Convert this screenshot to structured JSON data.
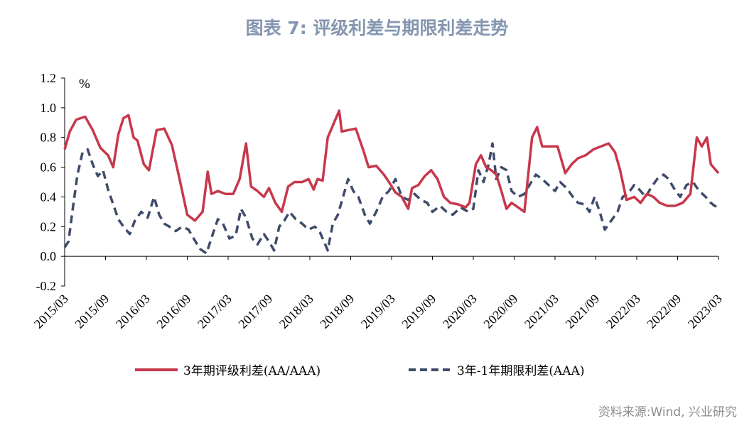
{
  "title": "图表 7:  评级利差与期限利差走势",
  "source": "资料来源:Wind, 兴业研究",
  "colors": {
    "series1": "#C8374B",
    "series2": "#3E4C6B",
    "title": "#8496B0"
  },
  "chart_data": {
    "type": "line",
    "unit_label": "%",
    "ylim": [
      -0.2,
      1.2
    ],
    "yticks": [
      "1.2",
      "1.0",
      "0.8",
      "0.6",
      "0.4",
      "0.2",
      "0.0",
      "-0.2"
    ],
    "xticks": [
      "2015/03",
      "2015/09",
      "2016/03",
      "2016/09",
      "2017/03",
      "2017/09",
      "2018/03",
      "2018/09",
      "2019/03",
      "2019/09",
      "2020/03",
      "2020/09",
      "2021/03",
      "2021/09",
      "2022/03",
      "2022/09",
      "2023/03"
    ],
    "grid": false,
    "legend_position": "bottom",
    "series": [
      {
        "name": "3年期评级利差(AA/AAA)",
        "style": "solid",
        "points": [
          [
            0,
            0.72
          ],
          [
            0.2,
            0.84
          ],
          [
            0.45,
            0.92
          ],
          [
            0.8,
            0.94
          ],
          [
            1.1,
            0.85
          ],
          [
            1.4,
            0.73
          ],
          [
            1.7,
            0.68
          ],
          [
            1.9,
            0.6
          ],
          [
            2.1,
            0.82
          ],
          [
            2.3,
            0.93
          ],
          [
            2.5,
            0.95
          ],
          [
            2.7,
            0.8
          ],
          [
            2.85,
            0.78
          ],
          [
            3.1,
            0.62
          ],
          [
            3.3,
            0.58
          ],
          [
            3.6,
            0.85
          ],
          [
            3.9,
            0.86
          ],
          [
            4.2,
            0.75
          ],
          [
            4.5,
            0.52
          ],
          [
            4.8,
            0.28
          ],
          [
            5.1,
            0.24
          ],
          [
            5.4,
            0.3
          ],
          [
            5.6,
            0.57
          ],
          [
            5.75,
            0.42
          ],
          [
            6.0,
            0.44
          ],
          [
            6.3,
            0.42
          ],
          [
            6.6,
            0.42
          ],
          [
            6.85,
            0.52
          ],
          [
            7.1,
            0.76
          ],
          [
            7.3,
            0.47
          ],
          [
            7.55,
            0.44
          ],
          [
            7.8,
            0.4
          ],
          [
            8.0,
            0.46
          ],
          [
            8.25,
            0.36
          ],
          [
            8.5,
            0.3
          ],
          [
            8.75,
            0.47
          ],
          [
            9.0,
            0.5
          ],
          [
            9.3,
            0.5
          ],
          [
            9.55,
            0.52
          ],
          [
            9.75,
            0.45
          ],
          [
            9.9,
            0.52
          ],
          [
            10.1,
            0.51
          ],
          [
            10.3,
            0.8
          ],
          [
            10.55,
            0.9
          ],
          [
            10.75,
            0.98
          ],
          [
            10.85,
            0.84
          ],
          [
            11.1,
            0.85
          ],
          [
            11.4,
            0.86
          ],
          [
            11.7,
            0.71
          ],
          [
            11.9,
            0.6
          ],
          [
            12.2,
            0.61
          ],
          [
            12.5,
            0.55
          ],
          [
            12.7,
            0.5
          ],
          [
            12.95,
            0.43
          ],
          [
            13.2,
            0.4
          ],
          [
            13.45,
            0.32
          ],
          [
            13.6,
            0.46
          ],
          [
            13.85,
            0.48
          ],
          [
            14.1,
            0.54
          ],
          [
            14.35,
            0.58
          ],
          [
            14.6,
            0.52
          ],
          [
            14.85,
            0.4
          ],
          [
            15.1,
            0.36
          ],
          [
            15.4,
            0.35
          ],
          [
            15.7,
            0.33
          ],
          [
            15.85,
            0.36
          ],
          [
            16.1,
            0.62
          ],
          [
            16.3,
            0.68
          ],
          [
            16.5,
            0.6
          ],
          [
            16.7,
            0.58
          ],
          [
            16.9,
            0.55
          ],
          [
            17.1,
            0.44
          ],
          [
            17.3,
            0.32
          ],
          [
            17.5,
            0.36
          ],
          [
            17.75,
            0.33
          ],
          [
            18.0,
            0.3
          ],
          [
            18.3,
            0.8
          ],
          [
            18.5,
            0.87
          ],
          [
            18.7,
            0.74
          ],
          [
            19.0,
            0.74
          ],
          [
            19.3,
            0.74
          ],
          [
            19.6,
            0.56
          ],
          [
            19.85,
            0.62
          ],
          [
            20.1,
            0.66
          ],
          [
            20.4,
            0.68
          ],
          [
            20.7,
            0.72
          ],
          [
            21.0,
            0.74
          ],
          [
            21.3,
            0.76
          ],
          [
            21.55,
            0.7
          ],
          [
            21.75,
            0.58
          ],
          [
            22.0,
            0.38
          ],
          [
            22.3,
            0.4
          ],
          [
            22.55,
            0.36
          ],
          [
            22.8,
            0.42
          ],
          [
            23.05,
            0.4
          ],
          [
            23.3,
            0.36
          ],
          [
            23.6,
            0.34
          ],
          [
            23.9,
            0.34
          ],
          [
            24.2,
            0.36
          ],
          [
            24.5,
            0.42
          ],
          [
            24.75,
            0.8
          ],
          [
            24.95,
            0.74
          ],
          [
            25.15,
            0.8
          ],
          [
            25.3,
            0.62
          ],
          [
            25.5,
            0.58
          ],
          [
            25.6,
            0.56
          ]
        ]
      },
      {
        "name": "3年-1年期限利差(AAA)",
        "style": "dashed",
        "points": [
          [
            0,
            0.06
          ],
          [
            0.15,
            0.1
          ],
          [
            0.3,
            0.3
          ],
          [
            0.5,
            0.55
          ],
          [
            0.7,
            0.7
          ],
          [
            0.9,
            0.72
          ],
          [
            1.1,
            0.62
          ],
          [
            1.3,
            0.54
          ],
          [
            1.5,
            0.58
          ],
          [
            1.7,
            0.45
          ],
          [
            1.9,
            0.35
          ],
          [
            2.1,
            0.25
          ],
          [
            2.3,
            0.2
          ],
          [
            2.55,
            0.15
          ],
          [
            2.75,
            0.24
          ],
          [
            3.0,
            0.3
          ],
          [
            3.25,
            0.26
          ],
          [
            3.5,
            0.4
          ],
          [
            3.7,
            0.28
          ],
          [
            3.9,
            0.22
          ],
          [
            4.1,
            0.2
          ],
          [
            4.35,
            0.17
          ],
          [
            4.6,
            0.2
          ],
          [
            4.85,
            0.18
          ],
          [
            5.05,
            0.12
          ],
          [
            5.3,
            0.05
          ],
          [
            5.55,
            0.02
          ],
          [
            5.8,
            0.15
          ],
          [
            6.0,
            0.25
          ],
          [
            6.2,
            0.22
          ],
          [
            6.45,
            0.12
          ],
          [
            6.7,
            0.14
          ],
          [
            6.9,
            0.32
          ],
          [
            7.1,
            0.26
          ],
          [
            7.35,
            0.12
          ],
          [
            7.55,
            0.08
          ],
          [
            7.8,
            0.15
          ],
          [
            8.0,
            0.1
          ],
          [
            8.2,
            0.04
          ],
          [
            8.4,
            0.2
          ],
          [
            8.6,
            0.24
          ],
          [
            8.8,
            0.3
          ],
          [
            9.05,
            0.25
          ],
          [
            9.3,
            0.22
          ],
          [
            9.55,
            0.18
          ],
          [
            9.8,
            0.2
          ],
          [
            10.0,
            0.16
          ],
          [
            10.15,
            0.1
          ],
          [
            10.3,
            0.04
          ],
          [
            10.5,
            0.22
          ],
          [
            10.7,
            0.28
          ],
          [
            10.9,
            0.4
          ],
          [
            11.1,
            0.52
          ],
          [
            11.3,
            0.44
          ],
          [
            11.5,
            0.4
          ],
          [
            11.75,
            0.28
          ],
          [
            11.95,
            0.22
          ],
          [
            12.2,
            0.3
          ],
          [
            12.45,
            0.4
          ],
          [
            12.7,
            0.44
          ],
          [
            12.95,
            0.52
          ],
          [
            13.2,
            0.4
          ],
          [
            13.45,
            0.38
          ],
          [
            13.7,
            0.42
          ],
          [
            13.95,
            0.38
          ],
          [
            14.2,
            0.36
          ],
          [
            14.4,
            0.3
          ],
          [
            14.7,
            0.34
          ],
          [
            14.95,
            0.3
          ],
          [
            15.2,
            0.28
          ],
          [
            15.5,
            0.33
          ],
          [
            15.8,
            0.3
          ],
          [
            16.0,
            0.32
          ],
          [
            16.2,
            0.58
          ],
          [
            16.4,
            0.5
          ],
          [
            16.6,
            0.62
          ],
          [
            16.75,
            0.76
          ],
          [
            16.9,
            0.52
          ],
          [
            17.1,
            0.6
          ],
          [
            17.3,
            0.58
          ],
          [
            17.5,
            0.44
          ],
          [
            17.75,
            0.4
          ],
          [
            18.0,
            0.42
          ],
          [
            18.2,
            0.48
          ],
          [
            18.45,
            0.55
          ],
          [
            18.7,
            0.52
          ],
          [
            18.95,
            0.48
          ],
          [
            19.2,
            0.44
          ],
          [
            19.4,
            0.5
          ],
          [
            19.65,
            0.46
          ],
          [
            19.9,
            0.4
          ],
          [
            20.1,
            0.36
          ],
          [
            20.35,
            0.35
          ],
          [
            20.55,
            0.3
          ],
          [
            20.75,
            0.4
          ],
          [
            20.95,
            0.3
          ],
          [
            21.15,
            0.18
          ],
          [
            21.4,
            0.24
          ],
          [
            21.65,
            0.3
          ],
          [
            21.85,
            0.4
          ],
          [
            22.05,
            0.42
          ],
          [
            22.3,
            0.48
          ],
          [
            22.5,
            0.45
          ],
          [
            22.75,
            0.4
          ],
          [
            22.95,
            0.46
          ],
          [
            23.2,
            0.52
          ],
          [
            23.45,
            0.55
          ],
          [
            23.65,
            0.52
          ],
          [
            23.85,
            0.46
          ],
          [
            24.1,
            0.4
          ],
          [
            24.35,
            0.48
          ],
          [
            24.6,
            0.5
          ],
          [
            24.85,
            0.44
          ],
          [
            25.1,
            0.4
          ],
          [
            25.3,
            0.36
          ],
          [
            25.45,
            0.34
          ],
          [
            25.6,
            0.33
          ]
        ]
      }
    ]
  }
}
